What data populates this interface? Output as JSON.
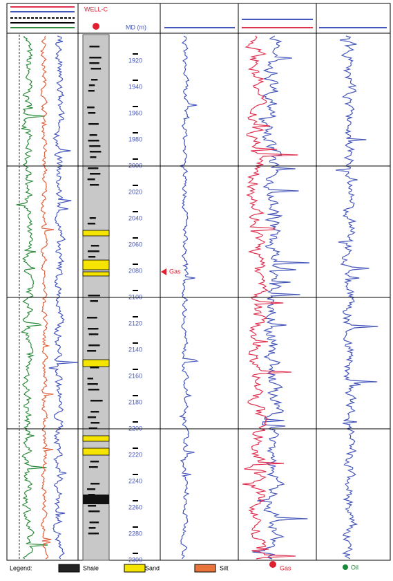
{
  "title": "WELL-C",
  "depth_label": "MD (m)",
  "depth_axis": {
    "ylim": [
      1900,
      2300
    ],
    "ticks": [
      1920,
      1940,
      1960,
      1980,
      2000,
      2020,
      2040,
      2060,
      2080,
      2100,
      2120,
      2140,
      2160,
      2180,
      2200,
      2220,
      2240,
      2260,
      2280,
      2300
    ],
    "grid": [
      2000,
      2100,
      2200
    ]
  },
  "annotations": {
    "gas": "Gas",
    "oil": "Oil"
  },
  "legend": {
    "title": "Legend:",
    "items": [
      {
        "label": "Shale",
        "color": "#222222"
      },
      {
        "label": "Sand",
        "color": "#f5e400"
      },
      {
        "label": "Silt",
        "color": "#e8743b"
      },
      {
        "label": "Gas",
        "color": "#e02030"
      },
      {
        "label": "Oil",
        "color": "#1a8a3a"
      }
    ]
  }
}
